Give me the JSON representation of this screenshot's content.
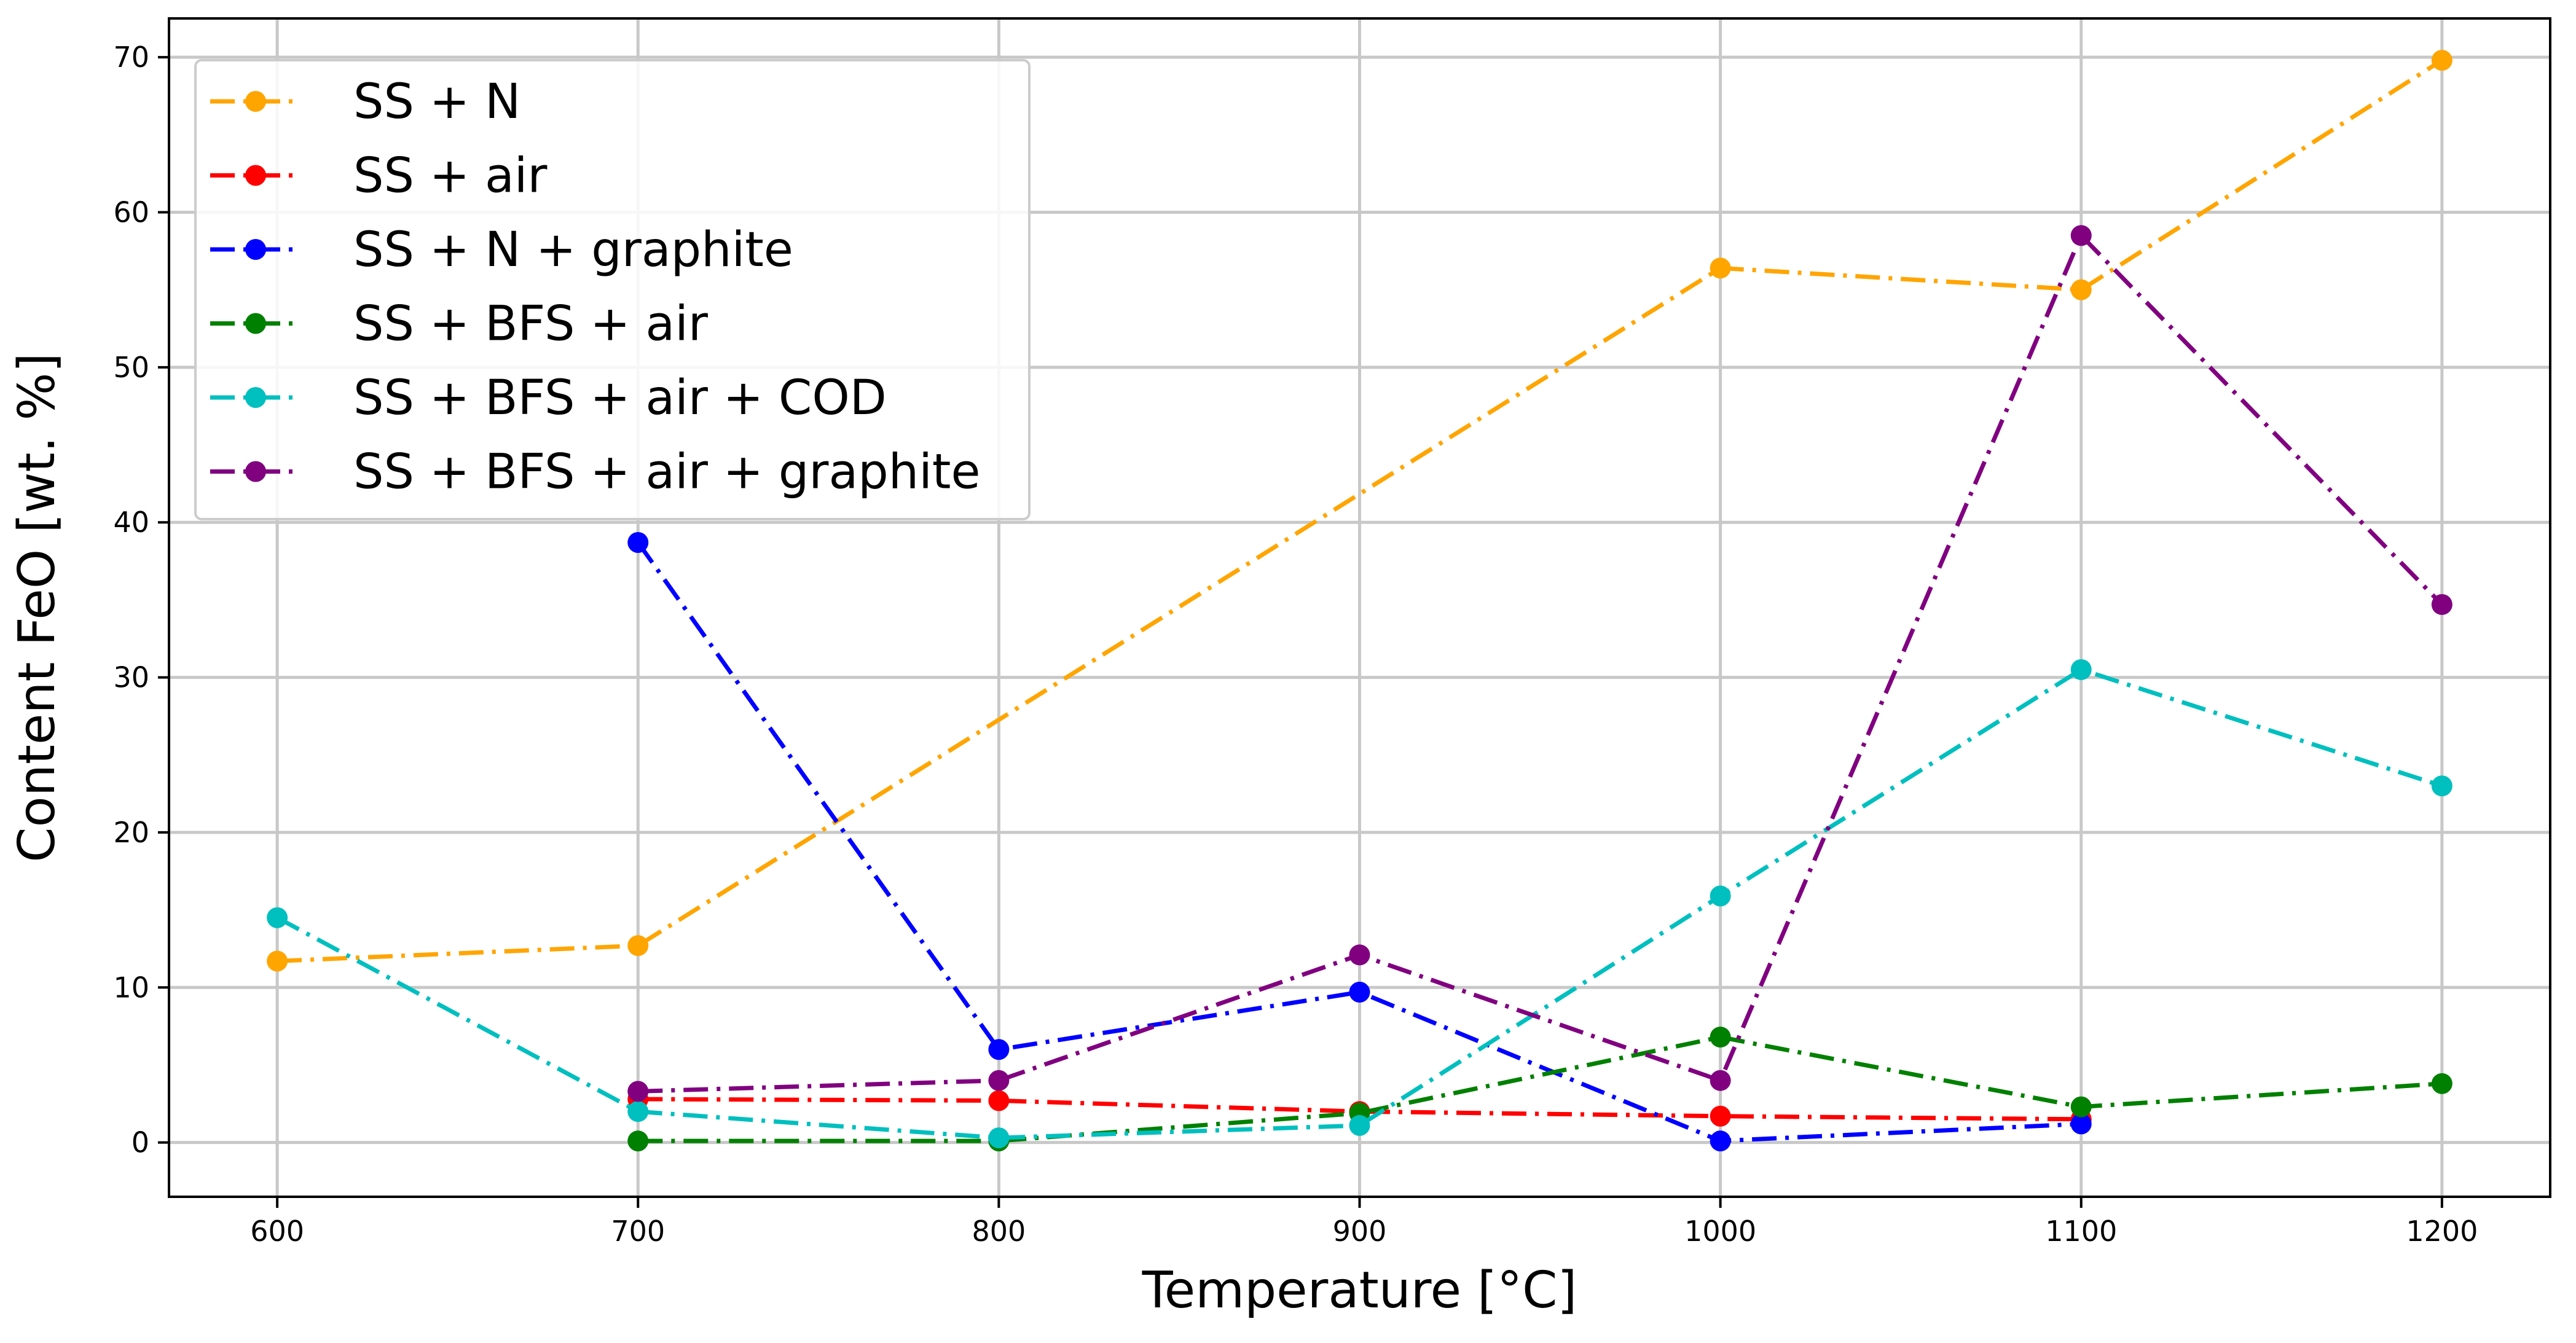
{
  "chart_data": {
    "type": "line",
    "title": "",
    "xlabel": "Temperature [°C]",
    "ylabel": "Content FeO [wt. %]",
    "xlim": [
      570,
      1230
    ],
    "ylim": [
      -3.5,
      72.5
    ],
    "xticks": [
      600,
      700,
      800,
      900,
      1000,
      1100,
      1200
    ],
    "yticks": [
      0,
      10,
      20,
      30,
      40,
      50,
      60,
      70
    ],
    "grid": true,
    "legend_position": "top-left",
    "series": [
      {
        "name": "SS + N",
        "color": "#FFA500",
        "line_style": "dashdot",
        "x": [
          600,
          700,
          1000,
          1100,
          1200
        ],
        "y": [
          11.7,
          12.7,
          56.4,
          55.0,
          69.8
        ]
      },
      {
        "name": "SS + air",
        "color": "#FF0000",
        "line_style": "dashdot",
        "x": [
          700,
          800,
          900,
          1000,
          1100
        ],
        "y": [
          2.8,
          2.7,
          2.0,
          1.7,
          1.5
        ]
      },
      {
        "name": "SS + N + graphite",
        "color": "#0000FF",
        "line_style": "dashdot",
        "x": [
          700,
          800,
          900,
          1000,
          1100
        ],
        "y": [
          38.7,
          6.0,
          9.7,
          0.1,
          1.2
        ]
      },
      {
        "name": "SS + BFS + air",
        "color": "#008000",
        "line_style": "dashdot",
        "x": [
          700,
          800,
          900,
          1000,
          1100,
          1200
        ],
        "y": [
          0.1,
          0.1,
          1.9,
          6.8,
          2.3,
          3.8
        ]
      },
      {
        "name": "SS + BFS + air + COD",
        "color": "#00BFBF",
        "line_style": "dashdot",
        "x": [
          600,
          700,
          800,
          900,
          1000,
          1100,
          1200
        ],
        "y": [
          14.5,
          2.0,
          0.3,
          1.1,
          15.9,
          30.5,
          23.0
        ]
      },
      {
        "name": "SS + BFS + air + graphite",
        "color": "#800080",
        "line_style": "dashdot",
        "x": [
          700,
          800,
          900,
          1000,
          1100,
          1200
        ],
        "y": [
          3.3,
          4.0,
          12.1,
          4.0,
          58.5,
          34.7
        ]
      }
    ]
  }
}
